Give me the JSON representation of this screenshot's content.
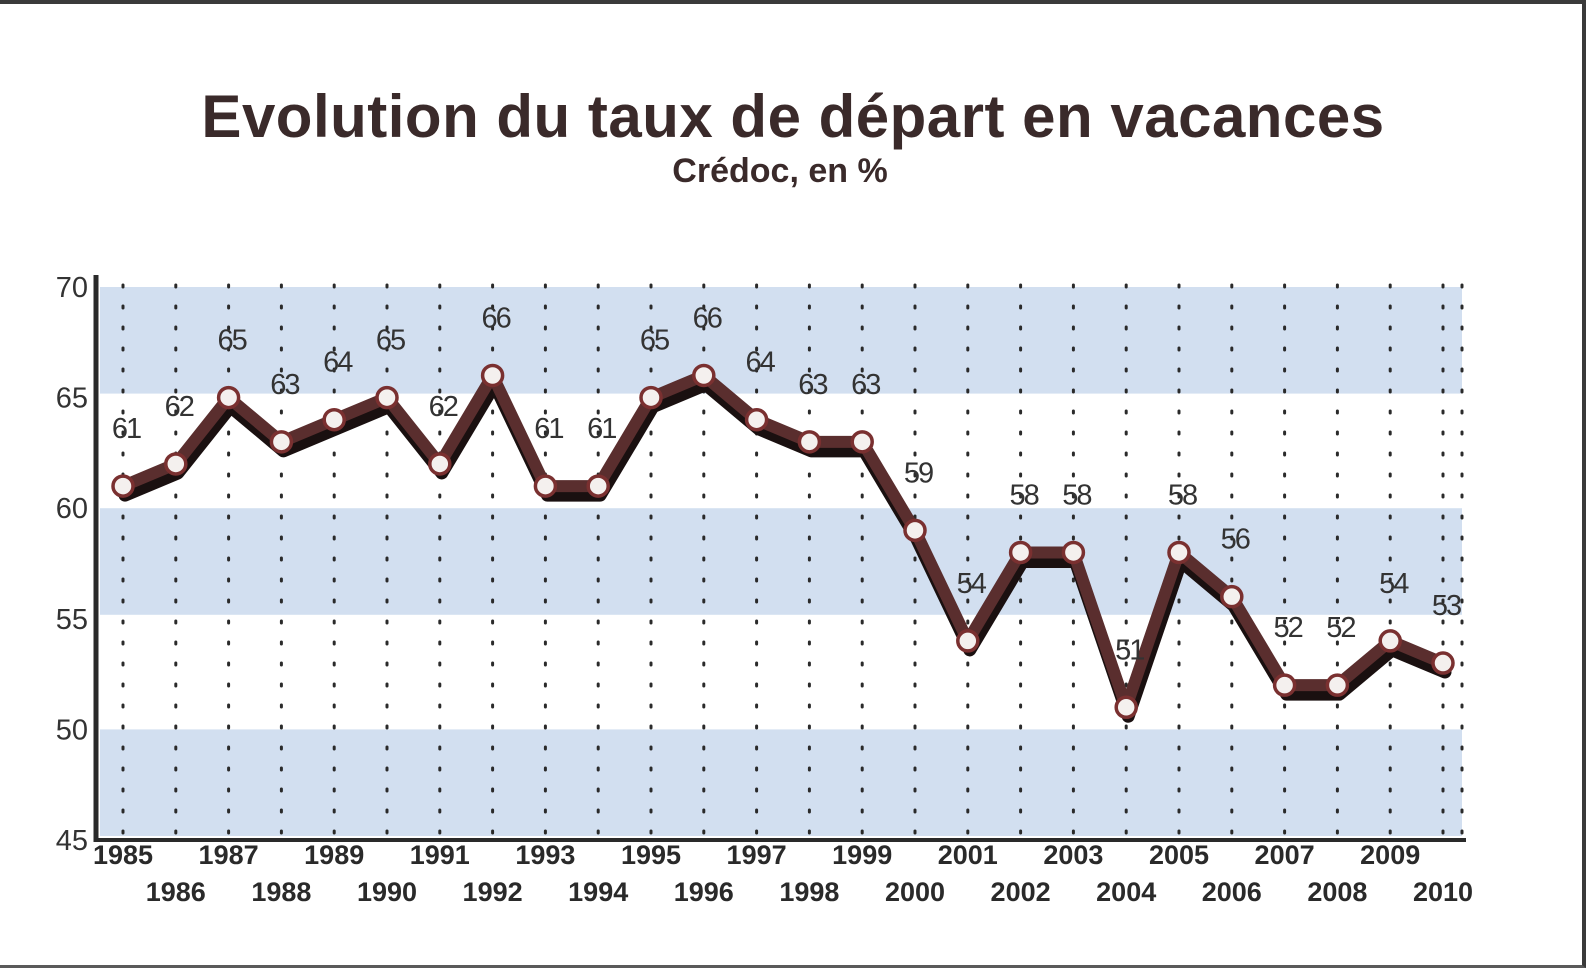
{
  "chart_data": {
    "type": "line",
    "title": "Evolution du taux de départ en vacances",
    "subtitle": "Crédoc, en %",
    "x": [
      "1985",
      "1986",
      "1987",
      "1988",
      "1989",
      "1990",
      "1991",
      "1992",
      "1993",
      "1994",
      "1995",
      "1996",
      "1997",
      "1998",
      "1999",
      "2000",
      "2001",
      "2002",
      "2003",
      "2004",
      "2005",
      "2006",
      "2007",
      "2008",
      "2009",
      "2010"
    ],
    "series": [
      {
        "values": [
          61,
          62,
          65,
          63,
          64,
          65,
          62,
          66,
          61,
          61,
          65,
          66,
          64,
          63,
          63,
          59,
          54,
          58,
          58,
          51,
          58,
          56,
          52,
          52,
          54,
          53
        ]
      }
    ],
    "data_labels": [
      "61",
      "62",
      "65",
      "63",
      "64",
      "65",
      "62",
      "66",
      "61",
      "61",
      "65",
      "66",
      "64",
      "63",
      "63",
      "59",
      "54",
      "58",
      "58",
      "51",
      "58",
      "56",
      "52",
      "52",
      "54",
      "53"
    ],
    "y_ticks": [
      "45",
      "50",
      "55",
      "60",
      "65",
      "70"
    ],
    "ylim": [
      45,
      70
    ],
    "grid": "dotted vertical lines, alternating horizontal bands",
    "colors": {
      "line": "#5a2e2e",
      "shadow": "#1a1010",
      "marker_fill": "#f4f0ee",
      "marker_stroke": "#7a3030",
      "band": "#d2dff0",
      "axis": "#2a2a2a"
    }
  }
}
